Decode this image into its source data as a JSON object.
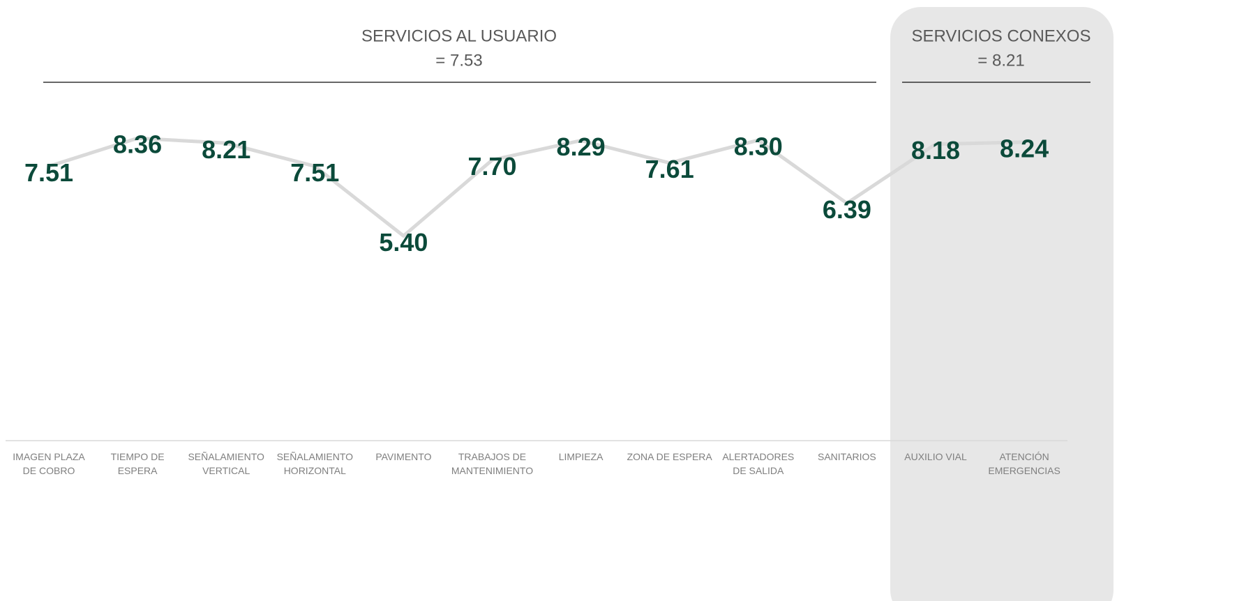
{
  "chart_data": {
    "type": "line",
    "groups": [
      {
        "title": "SERVICIOS AL USUARIO",
        "subtitle": "= 7.53"
      },
      {
        "title": "SERVICIOS CONEXOS",
        "subtitle": "= 8.21"
      }
    ],
    "categories": [
      "IMAGEN PLAZA DE COBRO",
      "TIEMPO DE ESPERA",
      "SEÑALAMIENTO VERTICAL",
      "SEÑALAMIENTO HORIZONTAL",
      "PAVIMENTO",
      "TRABAJOS DE MANTENIMIENTO",
      "LIMPIEZA",
      "ZONA DE ESPERA",
      "ALERTADORES DE SALIDA",
      "SANITARIOS",
      "AUXILIO VIAL",
      "ATENCIÓN EMERGENCIAS"
    ],
    "series": [
      {
        "name": "Calificación",
        "color": "#d9d9d9",
        "label_color": "#0b4a3a",
        "values": [
          7.51,
          8.36,
          8.21,
          7.51,
          5.4,
          7.7,
          8.29,
          7.61,
          8.3,
          6.39,
          8.18,
          8.24
        ],
        "value_labels": [
          "7.51",
          "8.36",
          "8.21",
          "7.51",
          "5.40",
          "7.70",
          "8.29",
          "7.61",
          "8.30",
          "6.39",
          "8.18",
          "8.24"
        ]
      }
    ],
    "ylim": [
      -0.8,
      9.8
    ]
  }
}
